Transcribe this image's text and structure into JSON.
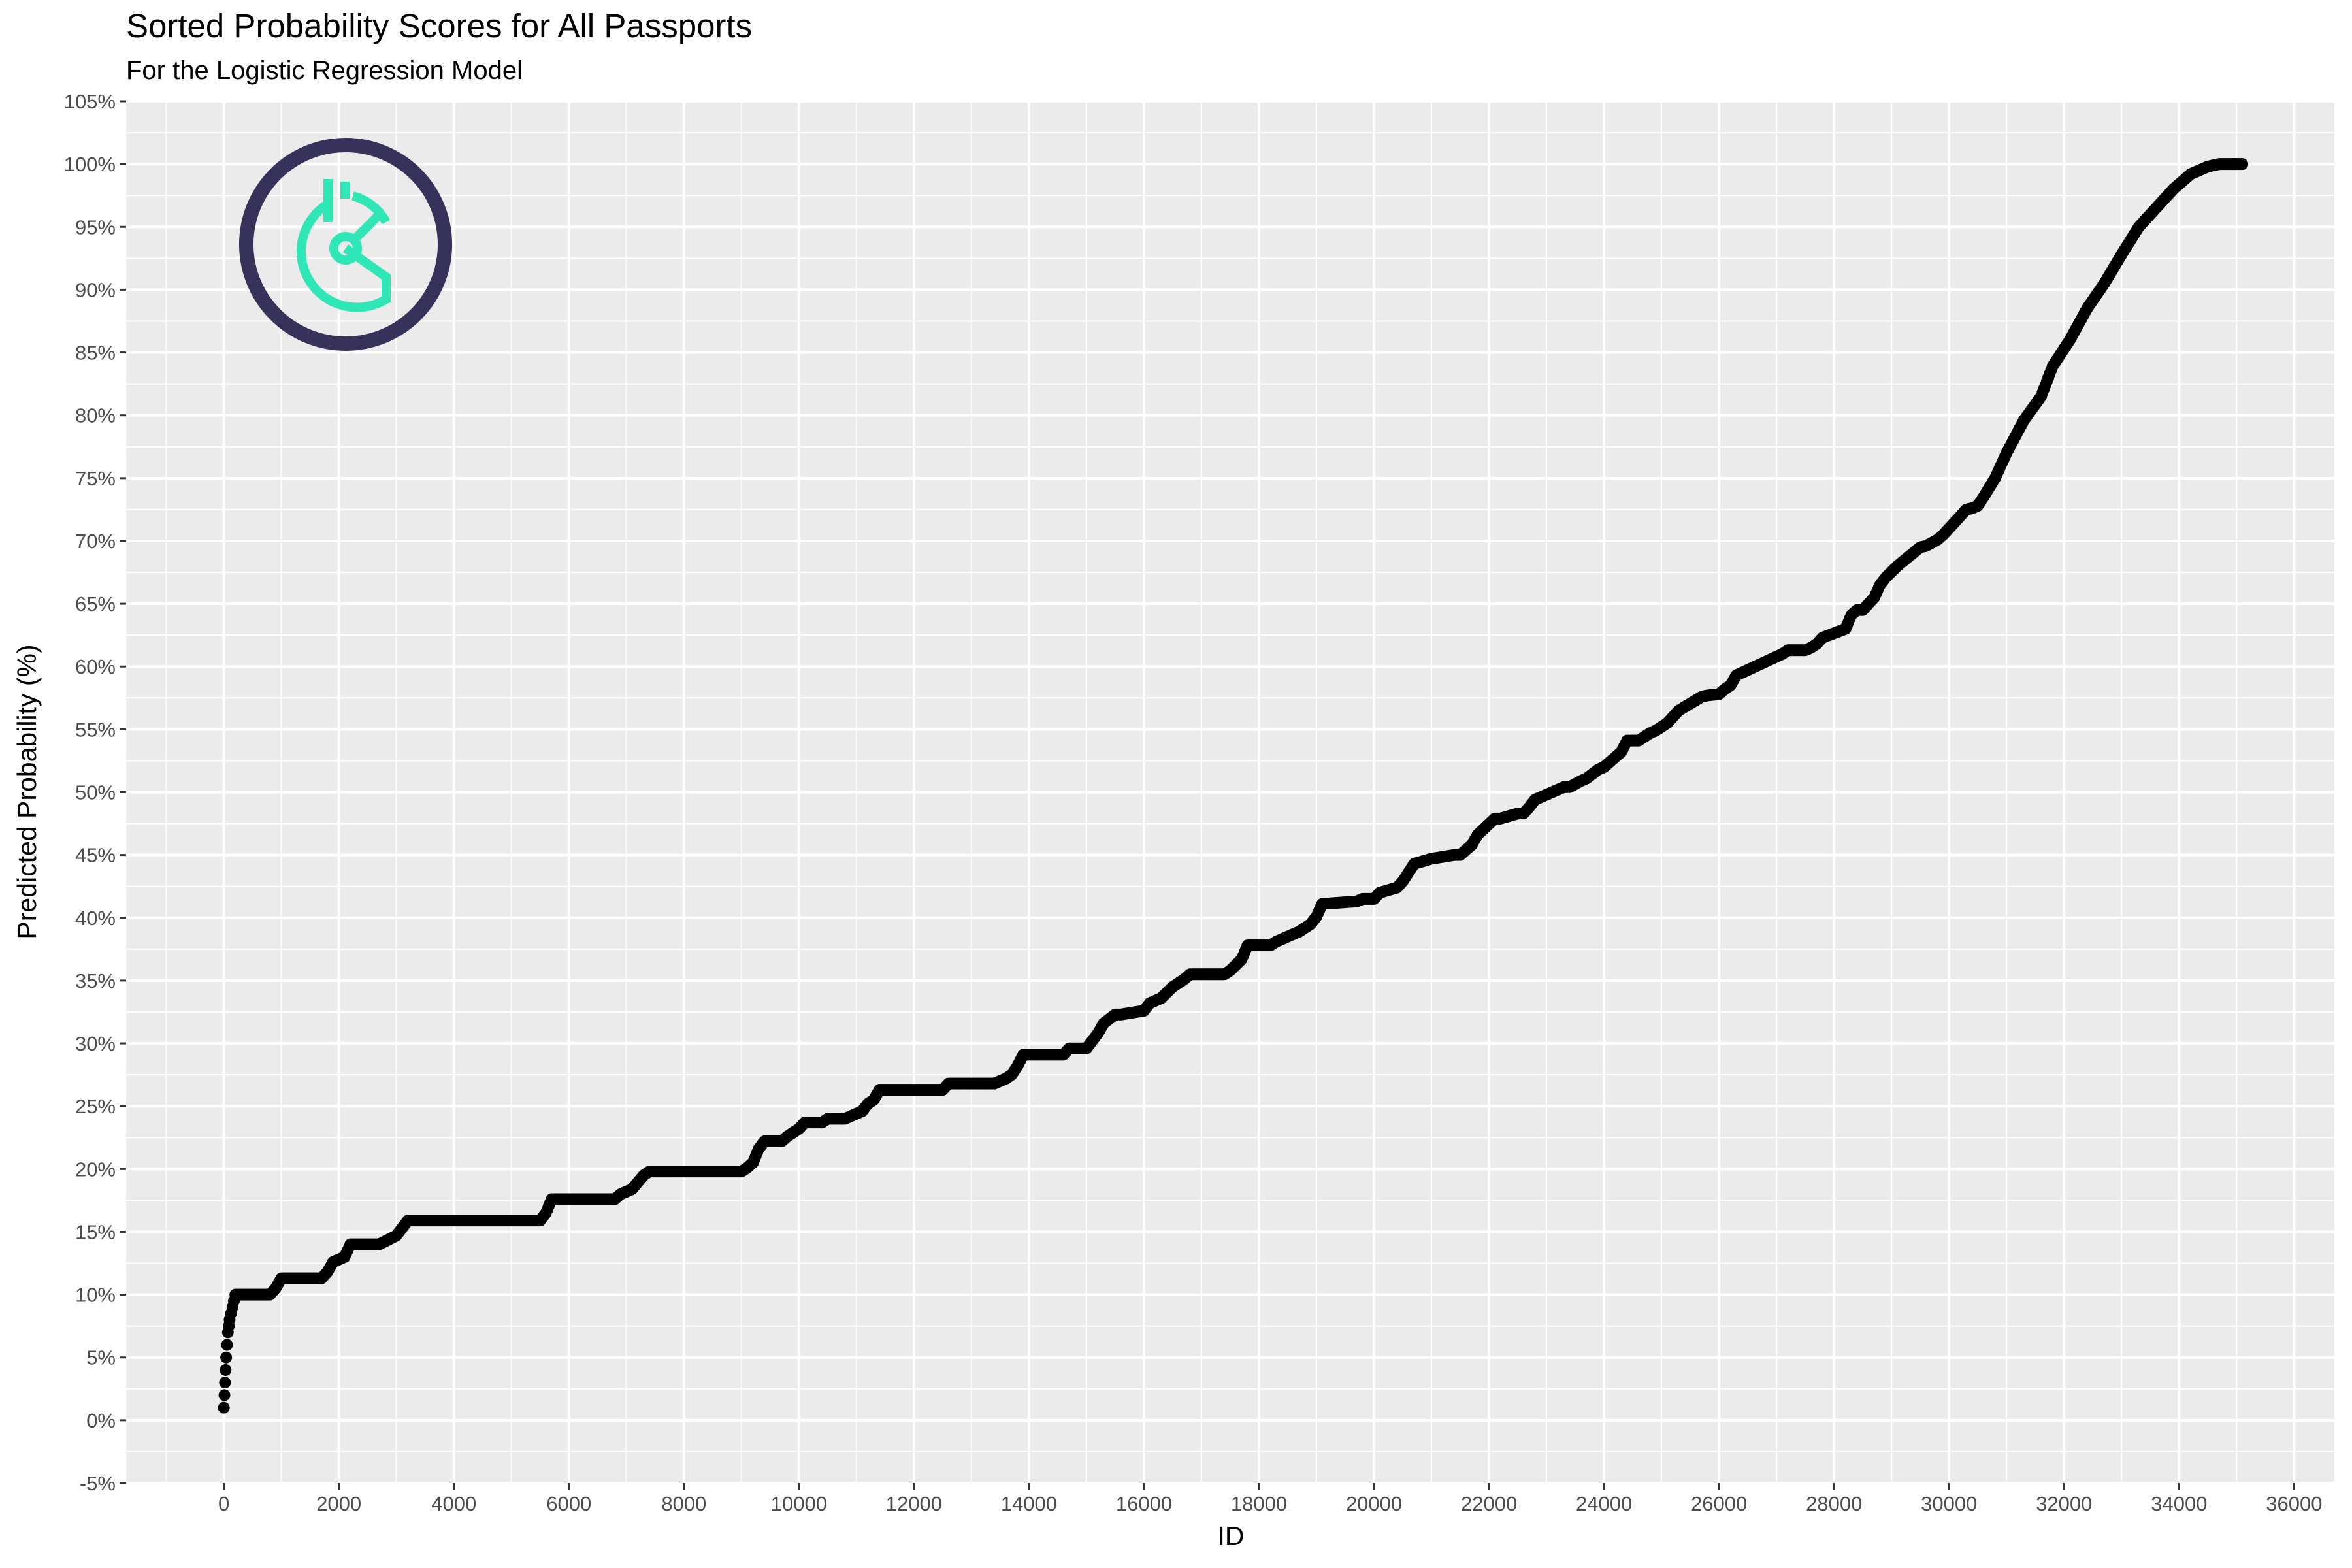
{
  "chart_data": {
    "type": "scatter",
    "title": "Sorted Probability Scores for All Passports",
    "subtitle": "For the Logistic Regression Model",
    "xlabel": "ID",
    "ylabel": "Predicted Probability (%)",
    "xlim": [
      -1700,
      36700
    ],
    "ylim": [
      -5,
      105
    ],
    "x_ticks": [
      0,
      2000,
      4000,
      6000,
      8000,
      10000,
      12000,
      14000,
      16000,
      18000,
      20000,
      22000,
      24000,
      26000,
      28000,
      30000,
      32000,
      34000,
      36000
    ],
    "x_tick_labels": [
      "0",
      "2000",
      "4000",
      "6000",
      "8000",
      "10000",
      "12000",
      "14000",
      "16000",
      "18000",
      "20000",
      "22000",
      "24000",
      "26000",
      "28000",
      "30000",
      "32000",
      "34000",
      "36000"
    ],
    "y_ticks": [
      -5,
      0,
      5,
      10,
      15,
      20,
      25,
      30,
      35,
      40,
      45,
      50,
      55,
      60,
      65,
      70,
      75,
      80,
      85,
      90,
      95,
      100,
      105
    ],
    "y_tick_labels": [
      "-5%",
      "0%",
      "5%",
      "10%",
      "15%",
      "20%",
      "25%",
      "30%",
      "35%",
      "40%",
      "45%",
      "50%",
      "55%",
      "60%",
      "65%",
      "70%",
      "75%",
      "80%",
      "85%",
      "90%",
      "95%",
      "100%",
      "105%"
    ],
    "grid": true,
    "point_color": "#000000",
    "background": "#ebebeb",
    "grid_color": "#ffffff",
    "series": [
      {
        "x": [
          0,
          20,
          40,
          70,
          100,
          150,
          200,
          800,
          900,
          1000,
          1700,
          1800,
          1900,
          2100,
          2200,
          2700,
          3000,
          3100,
          3200,
          5500,
          5600,
          5700,
          6800,
          6900,
          7100,
          7300,
          7400,
          9000,
          9100,
          9200,
          9300,
          9400,
          9700,
          9800,
          10000,
          10100,
          10400,
          10500,
          10800,
          11100,
          11200,
          11300,
          11400,
          11500,
          12500,
          12600,
          13400,
          13600,
          13700,
          13800,
          13900,
          14600,
          14700,
          15000,
          15100,
          15200,
          15300,
          15500,
          15600,
          16000,
          16100,
          16300,
          16500,
          16700,
          16800,
          17400,
          17500,
          17700,
          17800,
          18200,
          18300,
          18600,
          18700,
          18900,
          19000,
          19100,
          19700,
          19800,
          20000,
          20100,
          20400,
          20500,
          20600,
          20700,
          21000,
          21400,
          21500,
          21700,
          21800,
          22100,
          22200,
          22500,
          22600,
          22700,
          22800,
          23300,
          23400,
          23600,
          23700,
          23900,
          24000,
          24100,
          24300,
          24400,
          24600,
          24700,
          24800,
          24900,
          25000,
          25100,
          25200,
          25300,
          25700,
          25800,
          26000,
          26100,
          26200,
          26300,
          27100,
          27200,
          27500,
          27600,
          27700,
          27800,
          28200,
          28300,
          28400,
          28500,
          28600,
          28700,
          28800,
          28900,
          29100,
          29500,
          29600,
          29800,
          29900,
          30000,
          30300,
          30400,
          30500,
          30600,
          30800,
          31000,
          31300,
          31600,
          31800,
          32100,
          32400,
          32700,
          33000,
          33300,
          33600,
          33900,
          34200,
          34500,
          34700,
          34900,
          35100
        ],
        "y": [
          1,
          3,
          5,
          7,
          8,
          9,
          10,
          10,
          10.5,
          11.3,
          11.3,
          11.8,
          12.6,
          13,
          14,
          14,
          14.7,
          15.3,
          15.9,
          15.9,
          16.5,
          17.6,
          17.6,
          18,
          18.4,
          19.5,
          19.8,
          19.8,
          20.1,
          20.5,
          21.6,
          22.2,
          22.2,
          22.6,
          23.2,
          23.7,
          23.7,
          24,
          24,
          24.6,
          25.2,
          25.5,
          26.3,
          26.3,
          26.3,
          26.8,
          26.8,
          27.2,
          27.5,
          28.2,
          29.1,
          29.1,
          29.6,
          29.6,
          30.2,
          30.8,
          31.6,
          32.3,
          32.3,
          32.6,
          33.2,
          33.6,
          34.5,
          35.1,
          35.5,
          35.5,
          35.8,
          36.7,
          37.8,
          37.8,
          38.1,
          38.7,
          38.9,
          39.5,
          40.1,
          41.1,
          41.3,
          41.5,
          41.5,
          42,
          42.4,
          42.9,
          43.6,
          44.3,
          44.7,
          45,
          45,
          45.8,
          46.6,
          47.9,
          47.9,
          48.3,
          48.3,
          48.8,
          49.4,
          50.4,
          50.4,
          50.9,
          51.1,
          51.8,
          52,
          52.4,
          53.2,
          54.1,
          54.1,
          54.4,
          54.7,
          54.9,
          55.2,
          55.5,
          56,
          56.5,
          57.6,
          57.7,
          57.8,
          58.2,
          58.5,
          59.3,
          61,
          61.3,
          61.3,
          61.5,
          61.8,
          62.3,
          63,
          64.1,
          64.5,
          64.5,
          65,
          65.5,
          66.5,
          67.1,
          68,
          69.5,
          69.6,
          70.1,
          70.5,
          71,
          72.5,
          72.6,
          72.8,
          73.5,
          75,
          77,
          79.6,
          81.5,
          83.9,
          86,
          88.5,
          90.5,
          92.8,
          95,
          96.5,
          98,
          99.2,
          99.8,
          100,
          100,
          100
        ]
      }
    ]
  },
  "logo": {
    "name": "passport-gauge-logo",
    "ring_color": "#37325a",
    "icon_color": "#2ee6b6"
  }
}
